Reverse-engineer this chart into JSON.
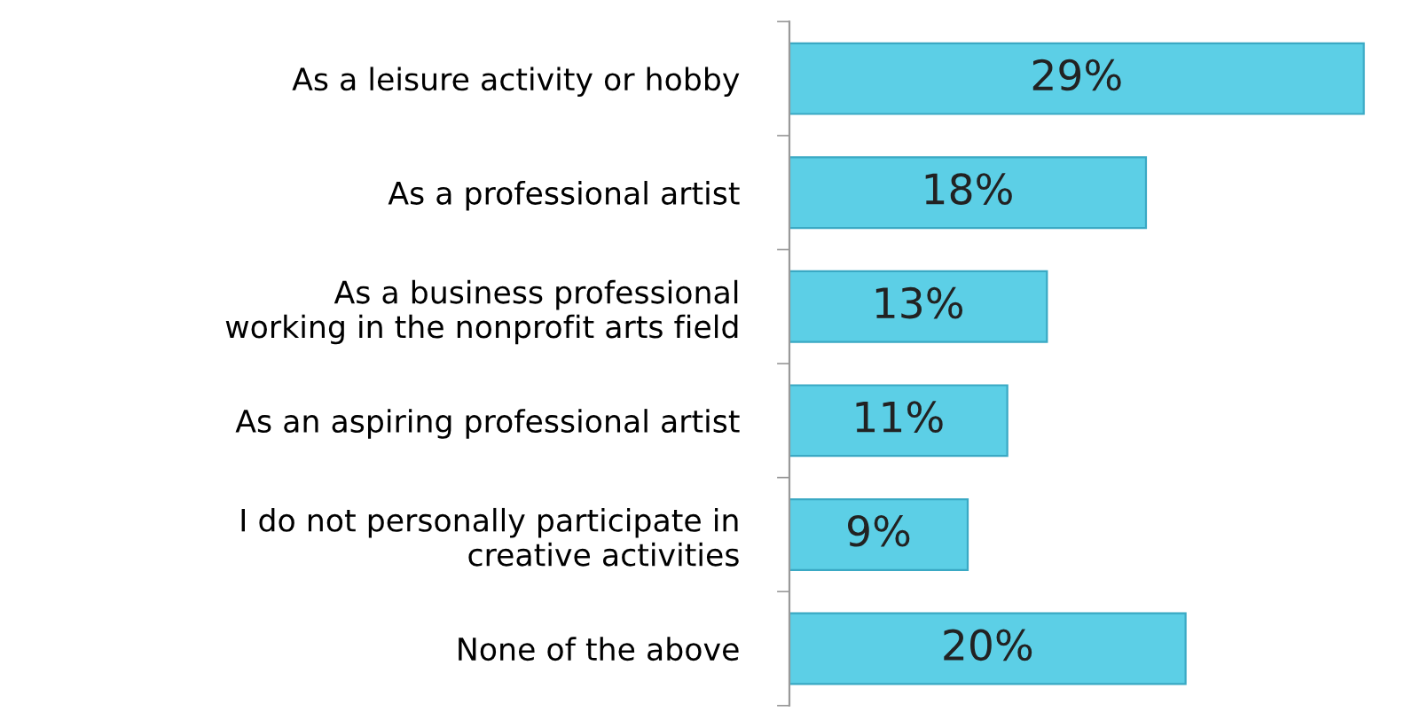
{
  "chart_data": {
    "type": "bar",
    "orientation": "horizontal",
    "categories": [
      "As a leisure activity or hobby",
      "As a professional artist",
      "As a business professional\nworking in the nonprofit arts field",
      "As an aspiring professional artist",
      "I do not personally participate in\ncreative activities",
      "None of the above"
    ],
    "values": [
      29,
      18,
      13,
      11,
      9,
      20
    ],
    "value_labels": [
      "29%",
      "18%",
      "13%",
      "11%",
      "9%",
      "20%"
    ],
    "color": "#5ccfe6",
    "grid": false,
    "legend": false
  }
}
